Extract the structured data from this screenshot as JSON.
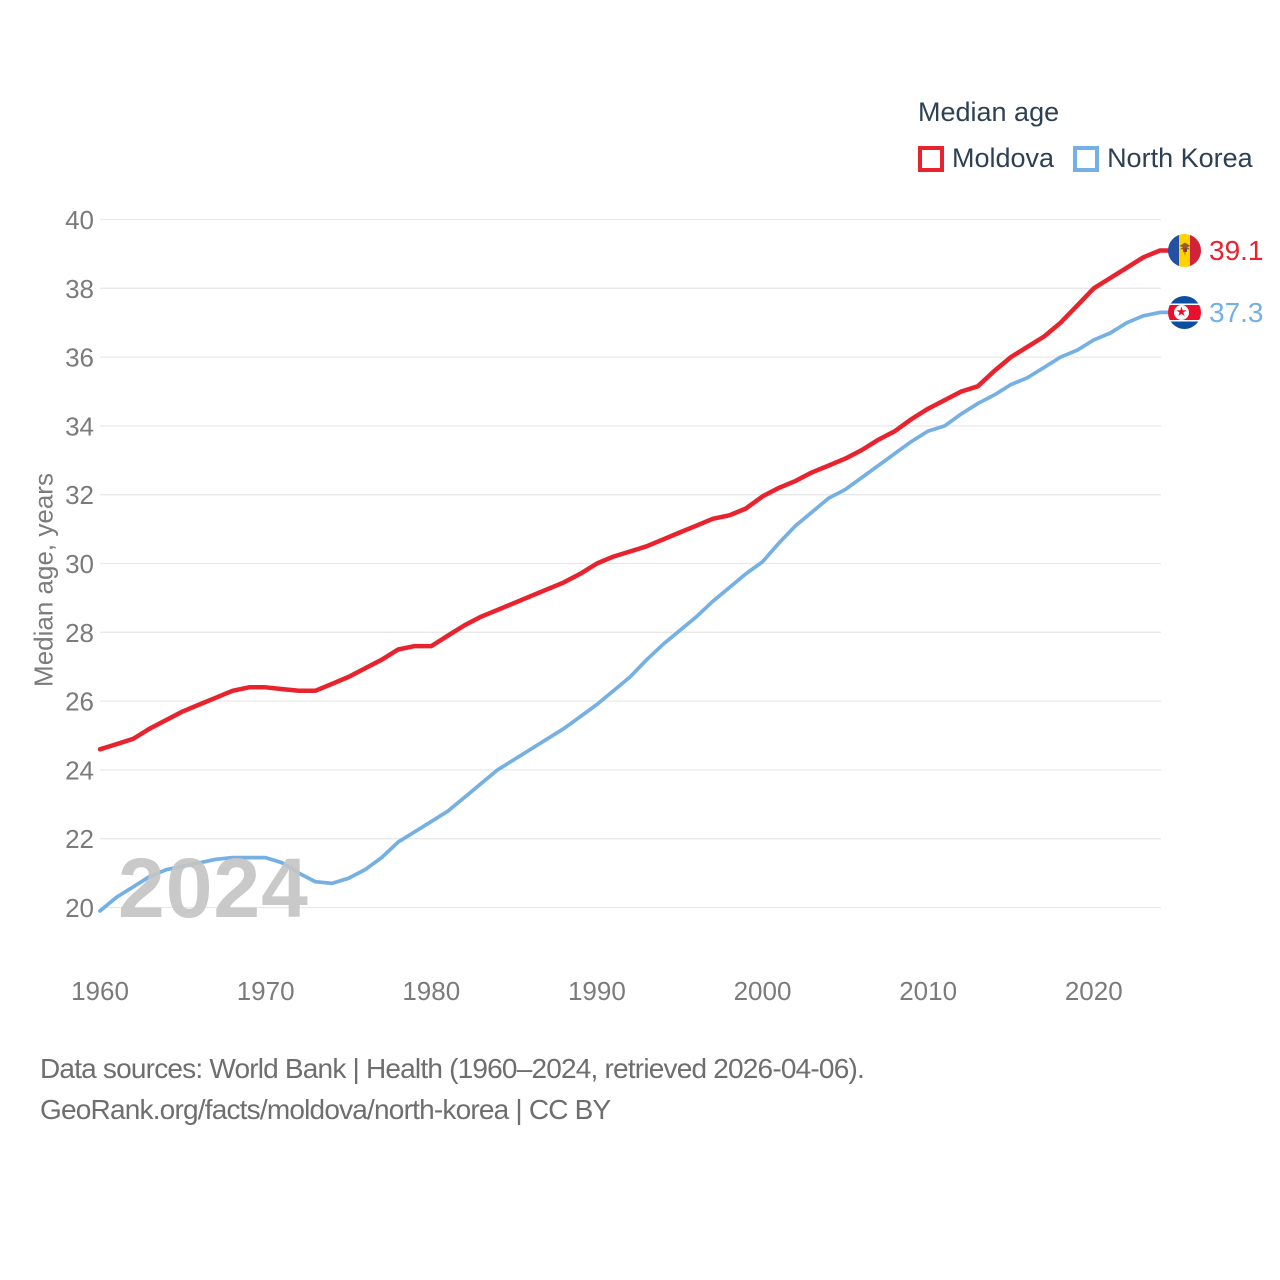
{
  "chart_data": {
    "type": "line",
    "title": "Median age",
    "ylabel": "Median age, years",
    "watermark": "2024",
    "grid": "horizontal",
    "legend_position": "top-right",
    "ylim": [
      20,
      40
    ],
    "yticks": [
      20,
      22,
      24,
      26,
      28,
      30,
      32,
      34,
      36,
      38,
      40
    ],
    "xticks": [
      1960,
      1970,
      1980,
      1990,
      2000,
      2010,
      2020
    ],
    "x_range": [
      1960,
      2024
    ],
    "years": [
      1960,
      1961,
      1962,
      1963,
      1964,
      1965,
      1966,
      1967,
      1968,
      1969,
      1970,
      1971,
      1972,
      1973,
      1974,
      1975,
      1976,
      1977,
      1978,
      1979,
      1980,
      1981,
      1982,
      1983,
      1984,
      1985,
      1986,
      1987,
      1988,
      1989,
      1990,
      1991,
      1992,
      1993,
      1994,
      1995,
      1996,
      1997,
      1998,
      1999,
      2000,
      2001,
      2002,
      2003,
      2004,
      2005,
      2006,
      2007,
      2008,
      2009,
      2010,
      2011,
      2012,
      2013,
      2014,
      2015,
      2016,
      2017,
      2018,
      2019,
      2020,
      2021,
      2022,
      2023,
      2024
    ],
    "series": [
      {
        "name": "Moldova",
        "color": "#e8232d",
        "end_label": "39.1",
        "end_value": 39.1,
        "flag": "moldova",
        "values": [
          24.6,
          24.75,
          24.9,
          25.2,
          25.45,
          25.7,
          25.9,
          26.1,
          26.3,
          26.4,
          26.4,
          26.35,
          26.3,
          26.3,
          26.5,
          26.7,
          26.95,
          27.2,
          27.5,
          27.6,
          27.6,
          27.9,
          28.2,
          28.45,
          28.65,
          28.85,
          29.05,
          29.25,
          29.45,
          29.7,
          30.0,
          30.2,
          30.35,
          30.5,
          30.7,
          30.9,
          31.1,
          31.3,
          31.4,
          31.6,
          31.95,
          32.2,
          32.4,
          32.65,
          32.85,
          33.05,
          33.3,
          33.6,
          33.85,
          34.2,
          34.5,
          34.75,
          35.0,
          35.15,
          35.6,
          36.0,
          36.3,
          36.6,
          37.0,
          37.5,
          38.0,
          38.3,
          38.6,
          38.9,
          39.1
        ]
      },
      {
        "name": "North Korea",
        "color": "#74b0e4",
        "end_label": "37.3",
        "end_value": 37.3,
        "flag": "north-korea",
        "values": [
          19.9,
          20.3,
          20.6,
          20.9,
          21.1,
          21.2,
          21.3,
          21.4,
          21.45,
          21.45,
          21.45,
          21.3,
          21.0,
          20.75,
          20.7,
          20.85,
          21.1,
          21.45,
          21.9,
          22.2,
          22.5,
          22.8,
          23.2,
          23.6,
          24.0,
          24.3,
          24.6,
          24.9,
          25.2,
          25.55,
          25.9,
          26.3,
          26.7,
          27.2,
          27.65,
          28.05,
          28.45,
          28.9,
          29.3,
          29.7,
          30.05,
          30.6,
          31.1,
          31.5,
          31.9,
          32.15,
          32.5,
          32.85,
          33.2,
          33.55,
          33.85,
          34.0,
          34.35,
          34.65,
          34.9,
          35.2,
          35.4,
          35.7,
          36.0,
          36.2,
          36.5,
          36.7,
          37.0,
          37.2,
          37.3
        ]
      }
    ]
  },
  "footer": {
    "line1": "Data sources: World Bank | Health (1960–2024, retrieved 2026-04-06).",
    "line2": "GeoRank.org/facts/moldova/north-korea | CC BY"
  }
}
